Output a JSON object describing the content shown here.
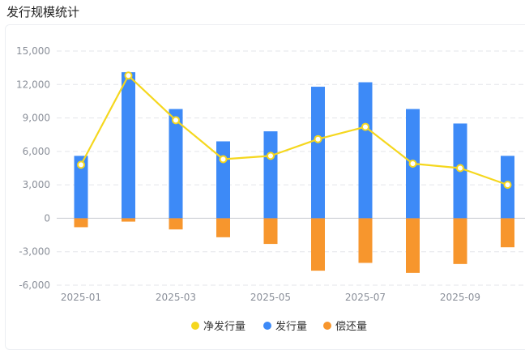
{
  "page": {
    "title": "发行规模统计"
  },
  "chart_data": {
    "type": "bar",
    "categories": [
      "2025-01",
      "2025-02",
      "2025-03",
      "2025-04",
      "2025-05",
      "2025-06",
      "2025-07",
      "2025-08",
      "2025-09",
      "2025-10"
    ],
    "x_tick_labels": [
      "2025-01",
      "2025-03",
      "2025-05",
      "2025-07",
      "2025-09"
    ],
    "series": [
      {
        "name": "净发行量",
        "kind": "line",
        "color": "#f5d71e",
        "values": [
          4800,
          12800,
          8800,
          5300,
          5600,
          7100,
          8200,
          4900,
          4500,
          3000
        ]
      },
      {
        "name": "发行量",
        "kind": "bar",
        "color": "#3d8af7",
        "values": [
          5600,
          13100,
          9800,
          6900,
          7800,
          11800,
          12200,
          9800,
          8500,
          5600
        ]
      },
      {
        "name": "偿还量",
        "kind": "bar",
        "color": "#f7962d",
        "values": [
          -800,
          -300,
          -1000,
          -1700,
          -2300,
          -4700,
          -4000,
          -4900,
          -4100,
          -2600
        ]
      }
    ],
    "y_ticks": [
      "15,000",
      "12,000",
      "9,000",
      "6,000",
      "3,000",
      "0",
      "-3,000",
      "-6,000"
    ],
    "y_tick_values": [
      15000,
      12000,
      9000,
      6000,
      3000,
      0,
      -3000,
      -6000
    ],
    "ylim": [
      -6000,
      15000
    ],
    "grid": true,
    "legend_position": "bottom"
  }
}
